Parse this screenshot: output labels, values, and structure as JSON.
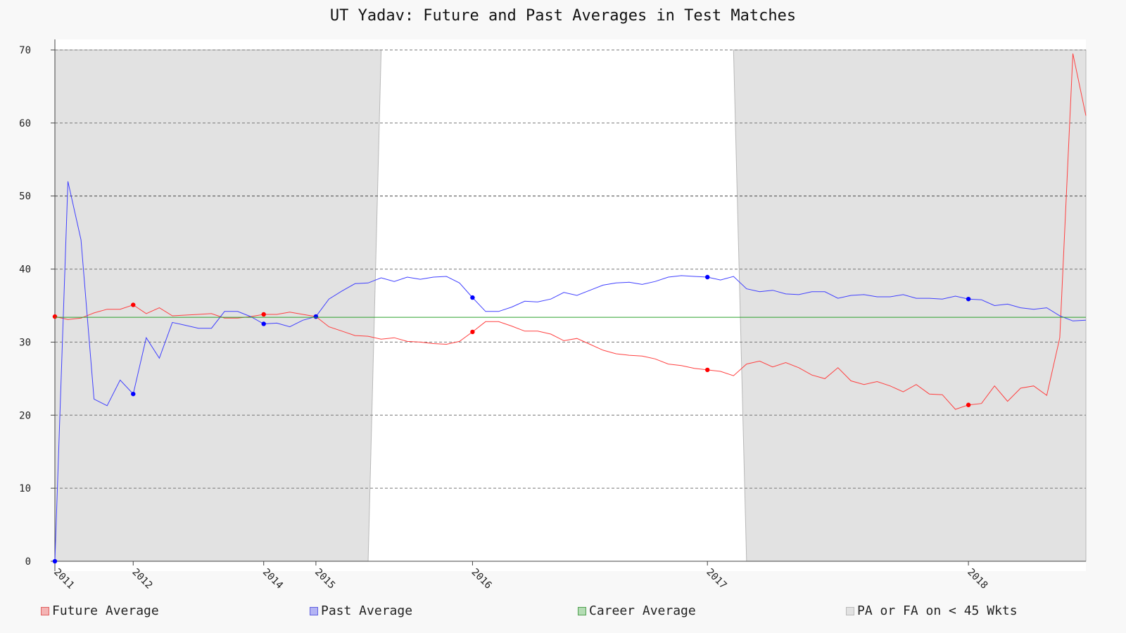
{
  "chart_data": {
    "type": "line",
    "title": "UT Yadav: Future and Past Averages in Test Matches",
    "xlabel": "",
    "ylabel": "",
    "ylim": [
      0,
      70
    ],
    "yticks": [
      0,
      10,
      20,
      30,
      40,
      50,
      60,
      70
    ],
    "grid": true,
    "legend_position": "bottom",
    "x_tick_labels": [
      {
        "index": 0,
        "label": "2011"
      },
      {
        "index": 6,
        "label": "2012"
      },
      {
        "index": 16,
        "label": "2014"
      },
      {
        "index": 20,
        "label": "2015"
      },
      {
        "index": 32,
        "label": "2016"
      },
      {
        "index": 50,
        "label": "2017"
      },
      {
        "index": 70,
        "label": "2018"
      }
    ],
    "n_points": 80,
    "series": [
      {
        "name": "Future Average",
        "color": "#ff4040",
        "values": [
          33.5,
          33.1,
          33.3,
          34.0,
          34.5,
          34.5,
          35.1,
          33.9,
          34.7,
          33.6,
          33.7,
          33.8,
          33.9,
          33.3,
          33.3,
          33.5,
          33.8,
          33.8,
          34.1,
          33.8,
          33.5,
          32.1,
          31.5,
          30.9,
          30.8,
          30.4,
          30.6,
          30.1,
          30.0,
          29.8,
          29.7,
          30.1,
          31.4,
          32.8,
          32.8,
          32.2,
          31.5,
          31.5,
          31.1,
          30.2,
          30.5,
          29.7,
          28.9,
          28.4,
          28.2,
          28.1,
          27.7,
          27.0,
          26.8,
          26.4,
          26.2,
          26.0,
          25.4,
          27.0,
          27.4,
          26.6,
          27.2,
          26.5,
          25.5,
          25.0,
          26.5,
          24.7,
          24.2,
          24.6,
          24.0,
          23.2,
          24.2,
          22.9,
          22.8,
          20.8,
          21.4,
          21.6,
          24.0,
          21.9,
          23.7,
          24.0,
          22.7,
          30.6,
          69.5,
          61.0
        ],
        "markers": [
          0,
          6,
          16,
          20,
          32,
          50,
          70
        ]
      },
      {
        "name": "Past Average",
        "color": "#4040ff",
        "values": [
          0.0,
          52.0,
          44.0,
          22.2,
          21.3,
          24.8,
          22.9,
          30.6,
          27.8,
          32.7,
          32.3,
          31.9,
          31.9,
          34.2,
          34.2,
          33.5,
          32.5,
          32.6,
          32.1,
          33.0,
          33.5,
          35.9,
          37.0,
          38.0,
          38.1,
          38.8,
          38.3,
          38.9,
          38.6,
          38.9,
          39.0,
          38.1,
          36.1,
          34.2,
          34.2,
          34.8,
          35.6,
          35.5,
          35.9,
          36.8,
          36.4,
          37.1,
          37.8,
          38.1,
          38.2,
          37.9,
          38.3,
          38.9,
          39.1,
          39.0,
          38.9,
          38.5,
          39.0,
          37.3,
          36.9,
          37.1,
          36.6,
          36.5,
          36.9,
          36.9,
          36.0,
          36.4,
          36.5,
          36.2,
          36.2,
          36.5,
          36.0,
          36.0,
          35.9,
          36.3,
          35.9,
          35.8,
          35.0,
          35.2,
          34.7,
          34.5,
          34.7,
          33.6,
          32.9,
          33.0
        ],
        "markers": [
          0,
          6,
          16,
          20,
          32,
          50,
          70
        ]
      },
      {
        "name": "Career Average",
        "color": "#2ca02c",
        "values": [
          33.4,
          33.4,
          33.4,
          33.4,
          33.4,
          33.4,
          33.4,
          33.4,
          33.4,
          33.4,
          33.4,
          33.4,
          33.4,
          33.4,
          33.4,
          33.4,
          33.4,
          33.4,
          33.4,
          33.4,
          33.4,
          33.4,
          33.4,
          33.4,
          33.4,
          33.4,
          33.4,
          33.4,
          33.4,
          33.4,
          33.4,
          33.4,
          33.4,
          33.4,
          33.4,
          33.4,
          33.4,
          33.4,
          33.4,
          33.4,
          33.4,
          33.4,
          33.4,
          33.4,
          33.4,
          33.4,
          33.4,
          33.4,
          33.4,
          33.4,
          33.4,
          33.4,
          33.4,
          33.4,
          33.4,
          33.4,
          33.4,
          33.4,
          33.4,
          33.4,
          33.4,
          33.4,
          33.4,
          33.4,
          33.4,
          33.4,
          33.4,
          33.4,
          33.4,
          33.4,
          33.4,
          33.4,
          33.4,
          33.4,
          33.4,
          33.4,
          33.4,
          33.4,
          33.4,
          33.4
        ]
      }
    ],
    "shaded_regions": {
      "name": "PA or FA on < 45 Wkts",
      "color": "#e2e2e2",
      "ranges": [
        [
          0,
          24
        ],
        [
          52,
          79
        ]
      ]
    }
  }
}
